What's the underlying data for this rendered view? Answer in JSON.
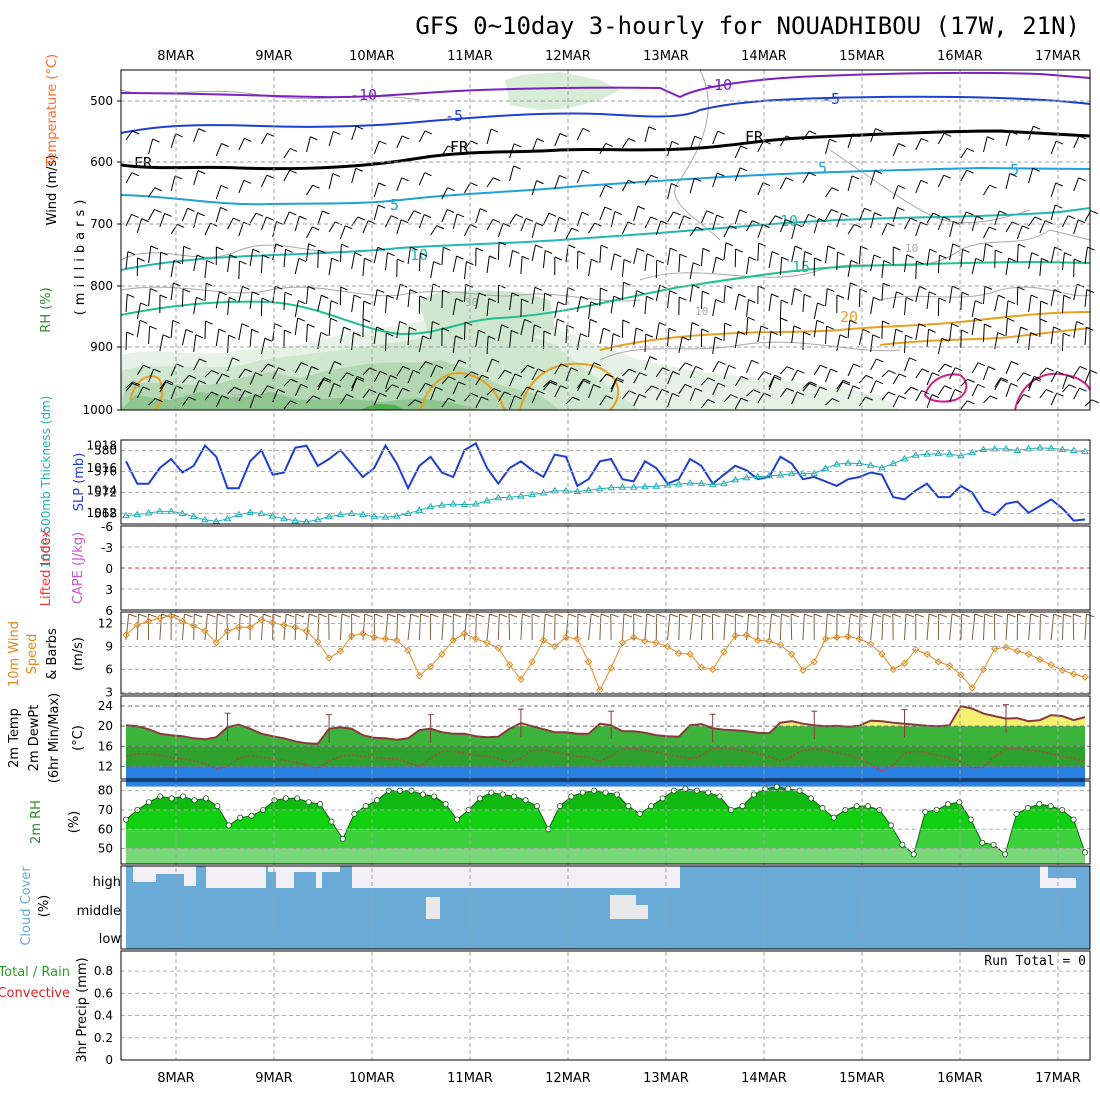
{
  "title": "GFS 0~10day 3-hourly for NOUADHIBOU (17W, 21N)",
  "dates": [
    "8MAR",
    "9MAR",
    "10MAR",
    "11MAR",
    "12MAR",
    "13MAR",
    "14MAR",
    "15MAR",
    "16MAR",
    "17MAR"
  ],
  "colors": {
    "rh": "#2e8b2e",
    "temp": "#ff6a2a",
    "slp": "#1f3fd0",
    "thickness": "#20b0b8",
    "lifted": "#ff3030",
    "cape": "#cc55cc",
    "wind10": "#e08a20",
    "precip_total": "#2a9e2a",
    "precip_conv": "#e02020",
    "cloud": "#6aaad6"
  },
  "panels": {
    "upper": {
      "labels": {
        "wind": "Wind (m/s)",
        "temperature": "Temperature (°C)",
        "rh": "RH (%)",
        "units": "(millibars)"
      },
      "yticks": [
        "500",
        "600",
        "700",
        "800",
        "900",
        "1000"
      ],
      "contour_labels": [
        "-10",
        "-10",
        "-5",
        "-5",
        "FR",
        "FR",
        "FR",
        "5",
        "5",
        "5",
        "10",
        "10",
        "15",
        "20",
        "10",
        "10",
        "30",
        "30"
      ]
    },
    "slp": {
      "labels": {
        "thickness": "1000-500mb Thickness (dm)",
        "slp": "SLP (mb)"
      },
      "left_ticks": [
        "580",
        "576",
        "572",
        "568"
      ],
      "right_ticks": [
        "1018",
        "1016",
        "1014",
        "1012"
      ]
    },
    "stability": {
      "labels": {
        "lifted": "Lifted Index",
        "cape": "CAPE (J/kg)"
      },
      "ticks": [
        "-6",
        "-3",
        "0",
        "3",
        "6"
      ]
    },
    "wind": {
      "labels": {
        "a": "10m Wind",
        "b": "Speed",
        "c": "& Barbs",
        "units": "(m/s)"
      },
      "ticks": [
        "12",
        "9",
        "6",
        "3"
      ]
    },
    "temp": {
      "labels": {
        "a": "2m Temp",
        "b": "2m DewPt",
        "c": "(6hr Min/Max)",
        "units": "(°C)"
      },
      "ticks": [
        "24",
        "20",
        "16",
        "12"
      ]
    },
    "rh2m": {
      "labels": {
        "a": "2m RH",
        "units": "(%)"
      },
      "ticks": [
        "80",
        "70",
        "60",
        "50"
      ]
    },
    "cloud": {
      "labels": {
        "a": "Cloud Cover",
        "units": "(%)"
      },
      "levels": [
        "high",
        "middle",
        "low"
      ]
    },
    "precip": {
      "labels": {
        "total": "Total / Rain",
        "conv": "Convective",
        "units": "3hr Precip (mm)"
      },
      "ticks": [
        "0.8",
        "0.6",
        "0.4",
        "0.2",
        "0"
      ],
      "run_total": "Run Total = 0"
    }
  },
  "chart_data": [
    {
      "type": "line",
      "title": "SLP (mb)",
      "x_unit": "forecast hour (3-hourly, 0 at start of period)",
      "series": [
        {
          "name": "SLP (mb)",
          "values": [
            1016.6,
            1014.6,
            1014.6,
            1016.0,
            1016.8,
            1015.6,
            1016.2,
            1018.0,
            1017.0,
            1014.2,
            1014.2,
            1016.6,
            1017.6,
            1015.4,
            1015.6,
            1017.8,
            1018.0,
            1016.2,
            1016.8,
            1017.6,
            1016.4,
            1015.2,
            1016.0,
            1018.0,
            1016.4,
            1014.2,
            1016.2,
            1017.0,
            1015.6,
            1015.2,
            1017.6,
            1018.2,
            1016.0,
            1014.6,
            1016.0,
            1016.6,
            1015.8,
            1015.2,
            1017.2,
            1017.0,
            1014.4,
            1015.0,
            1016.6,
            1016.8,
            1015.0,
            1014.8,
            1016.6,
            1016.0,
            1014.6,
            1015.0,
            1016.8,
            1016.2,
            1014.6,
            1015.4,
            1016.2,
            1015.8,
            1015.0,
            1015.2,
            1017.0,
            1016.4,
            1015.0,
            1015.2,
            1014.8,
            1014.4,
            1015.0,
            1015.2,
            1015.6,
            1015.4,
            1013.4,
            1013.2,
            1014.0,
            1014.6,
            1013.4,
            1013.4,
            1014.4,
            1013.8,
            1012.2,
            1011.8,
            1012.8,
            1013.0,
            1012.0,
            1012.6,
            1013.2,
            1012.4,
            1011.3,
            1011.4
          ]
        }
      ],
      "ylim": [
        1011,
        1018.5
      ]
    },
    {
      "type": "line",
      "title": "1000-500mb Thickness (dm)",
      "series": [
        {
          "name": "1000-500mb Thickness (dm)",
          "values": [
            567.6,
            567.8,
            568.1,
            568.4,
            568.4,
            568.0,
            567.4,
            566.8,
            566.5,
            567.0,
            567.8,
            568.2,
            568.0,
            567.5,
            567.0,
            566.6,
            566.4,
            566.8,
            567.4,
            567.8,
            568.0,
            567.8,
            567.4,
            567.3,
            567.5,
            568.0,
            568.6,
            569.3,
            569.6,
            569.8,
            569.7,
            569.8,
            570.4,
            571.0,
            571.1,
            571.3,
            571.6,
            571.9,
            572.3,
            572.3,
            572.2,
            572.4,
            572.7,
            572.9,
            573.0,
            573.0,
            573.1,
            573.2,
            573.4,
            573.6,
            573.8,
            573.7,
            573.5,
            573.7,
            574.4,
            574.8,
            575.0,
            575.2,
            575.3,
            575.6,
            575.6,
            575.6,
            576.6,
            577.4,
            577.6,
            577.5,
            577.2,
            576.7,
            577.5,
            578.4,
            579.1,
            579.3,
            579.4,
            579.3,
            579.0,
            579.6,
            580.2,
            580.3,
            580.3,
            580.0,
            580.3,
            580.5,
            580.4,
            580.2,
            580.0,
            579.8
          ]
        }
      ],
      "ylim": [
        566,
        582
      ]
    },
    {
      "type": "line",
      "title": "10m Wind Speed (m/s)",
      "series": [
        {
          "name": "10m Wind Speed",
          "values": [
            10.5,
            11.8,
            12.3,
            12.7,
            13.0,
            12.3,
            11.7,
            11.0,
            9.5,
            11.0,
            11.5,
            11.5,
            12.5,
            12.1,
            11.8,
            11.5,
            11.0,
            9.6,
            7.5,
            8.4,
            10.4,
            10.7,
            10.2,
            10.0,
            9.8,
            8.5,
            5.2,
            6.4,
            8.0,
            9.8,
            10.7,
            10.0,
            9.5,
            8.8,
            6.6,
            4.7,
            7.0,
            9.8,
            9.0,
            10.2,
            10.0,
            7.0,
            3.3,
            6.2,
            9.5,
            10.2,
            9.7,
            9.5,
            9.0,
            8.1,
            8.0,
            6.3,
            6.0,
            8.3,
            10.4,
            10.5,
            9.8,
            9.7,
            9.2,
            8.0,
            5.9,
            7.0,
            10.0,
            10.2,
            10.3,
            10.0,
            9.3,
            8.0,
            6.0,
            6.8,
            8.6,
            8.0,
            7.0,
            6.5,
            5.3,
            3.6,
            6.0,
            8.7,
            8.9,
            8.4,
            8.0,
            7.3,
            6.6,
            5.9,
            5.4,
            5.0
          ]
        }
      ],
      "ylim": [
        3,
        13.5
      ]
    },
    {
      "type": "area",
      "title": "2m Temp / 2m DewPt (°C)",
      "series": [
        {
          "name": "2m Temp",
          "values": [
            20.2,
            20.0,
            19.4,
            18.5,
            18.2,
            18.0,
            17.6,
            17.4,
            17.8,
            19.8,
            20.3,
            19.5,
            18.5,
            18.0,
            17.6,
            17.0,
            16.6,
            16.5,
            19.5,
            19.8,
            19.5,
            18.2,
            17.7,
            17.6,
            17.3,
            17.6,
            19.2,
            19.5,
            18.8,
            18.5,
            18.5,
            18.0,
            17.8,
            17.9,
            19.5,
            20.6,
            20.0,
            19.4,
            18.8,
            18.8,
            18.5,
            18.5,
            20.5,
            20.2,
            19.0,
            19.0,
            18.7,
            18.2,
            18.0,
            17.9,
            20.2,
            20.4,
            19.6,
            19.3,
            19.2,
            19.0,
            18.7,
            18.6,
            20.7,
            21.0,
            20.5,
            20.2,
            20.0,
            20.1,
            19.9,
            20.1,
            21.1,
            21.0,
            20.7,
            20.5,
            20.3,
            20.1,
            20.0,
            20.2,
            24.0,
            23.5,
            22.5,
            22.0,
            21.5,
            21.6,
            21.0,
            21.2,
            22.2,
            22.0,
            21.2,
            21.8
          ]
        },
        {
          "name": "2m DewPt",
          "values": [
            14.0,
            14.5,
            14.5,
            14.2,
            13.8,
            13.5,
            13.2,
            12.6,
            11.5,
            12.0,
            13.6,
            14.2,
            13.8,
            13.6,
            13.2,
            12.8,
            12.3,
            11.6,
            13.0,
            14.0,
            14.3,
            14.0,
            13.8,
            13.6,
            13.5,
            12.8,
            12.0,
            13.6,
            15.0,
            15.0,
            14.6,
            14.2,
            14.0,
            13.6,
            12.8,
            13.6,
            15.3,
            15.3,
            14.8,
            14.4,
            14.0,
            13.8,
            13.0,
            14.1,
            15.4,
            15.6,
            15.2,
            14.8,
            14.4,
            14.0,
            13.5,
            14.2,
            15.6,
            15.7,
            15.4,
            15.0,
            14.5,
            14.0,
            13.0,
            14.0,
            15.2,
            15.5,
            15.2,
            14.7,
            14.2,
            13.6,
            12.6,
            11.0,
            12.3,
            14.6,
            15.0,
            14.7,
            14.2,
            13.7,
            13.0,
            11.7,
            11.8,
            14.0,
            15.6,
            15.5,
            15.3,
            15.0,
            14.5,
            14.0,
            13.6,
            13.0
          ]
        }
      ],
      "ylim": [
        9.5,
        26
      ]
    },
    {
      "type": "area",
      "title": "2m RH (%)",
      "series": [
        {
          "name": "2m RH",
          "values": [
            65,
            70,
            74,
            77,
            76,
            77,
            75,
            76,
            72,
            62,
            66,
            67,
            70,
            75,
            76,
            76,
            74,
            73,
            64,
            55,
            68,
            72,
            75,
            80,
            80,
            80,
            78,
            77,
            73,
            65,
            70,
            76,
            79,
            78,
            77,
            75,
            72,
            60,
            72,
            77,
            79,
            80,
            79,
            78,
            72,
            68,
            72,
            76,
            80,
            81,
            80,
            79,
            77,
            70,
            72,
            78,
            81,
            82,
            81,
            80,
            76,
            71,
            66,
            70,
            72,
            72,
            70,
            62,
            52,
            47,
            69,
            70,
            73,
            74,
            65,
            53,
            52,
            47,
            68,
            71,
            73,
            72,
            70,
            65,
            48
          ]
        }
      ],
      "ylim": [
        42,
        85
      ]
    },
    {
      "type": "bar",
      "title": "Cloud Cover (%)",
      "series": [
        {
          "name": "high",
          "note": "mostly clear (0) from 9MAR to 13MAR, overcast (100) on 8MAR and from 13MAR onward"
        },
        {
          "name": "middle",
          "note": "100 except brief clear spells near 10MAR 12Z and 12MAR 12Z"
        },
        {
          "name": "low",
          "values_constant": 100
        }
      ],
      "ylim": [
        0,
        100
      ]
    },
    {
      "type": "bar",
      "title": "3hr Precip (mm)",
      "series": [
        {
          "name": "Total / Rain",
          "values_constant": 0
        }
      ],
      "ylim": [
        0,
        0.9
      ]
    }
  ]
}
